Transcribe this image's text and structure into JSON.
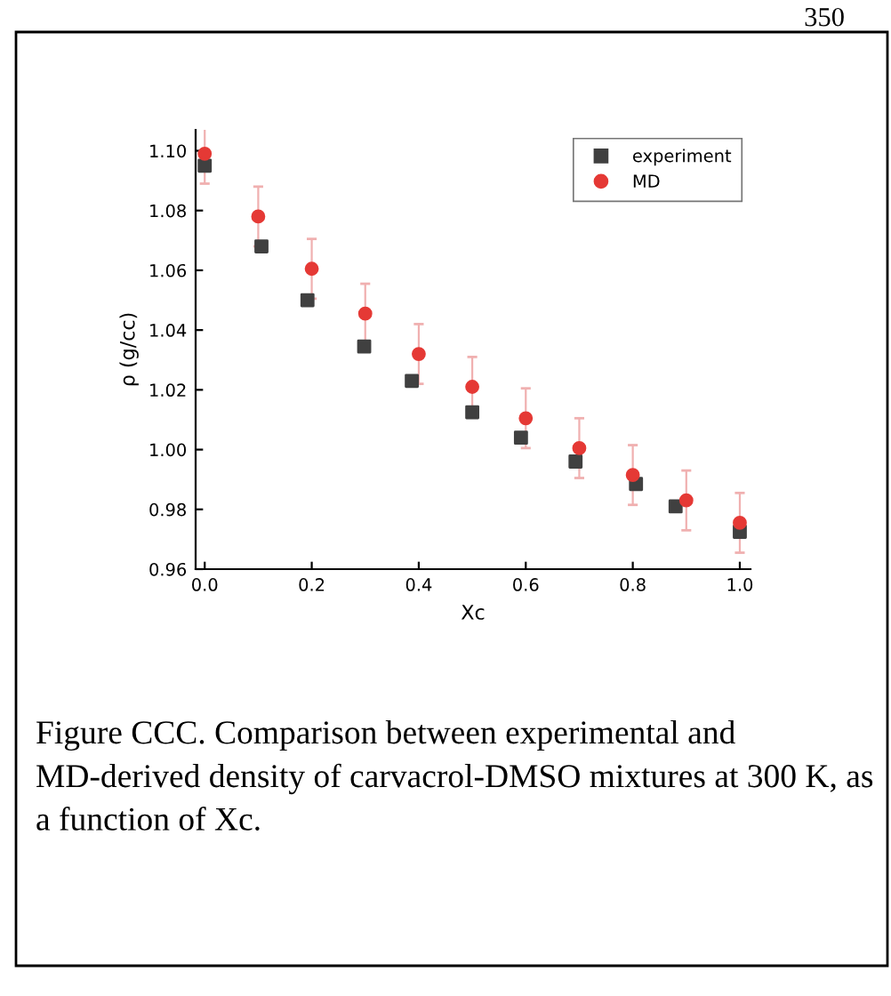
{
  "chart_data": {
    "type": "scatter",
    "xlabel": "Xc",
    "ylabel": "ρ (g/cc)",
    "xlim": [
      -0.017,
      1.02
    ],
    "ylim": [
      0.96,
      1.107
    ],
    "xticks": [
      {
        "value": 0,
        "label": "0.0"
      },
      0.2,
      0.4,
      0.6,
      0.8,
      {
        "value": 1,
        "label": "1.0"
      }
    ],
    "yticks": [
      0.96,
      0.98,
      {
        "value": 1,
        "label": "1.00"
      },
      1.02,
      1.04,
      1.06,
      1.08,
      {
        "value": 1.1,
        "label": "1.10"
      }
    ],
    "grid": false,
    "legend": "top right",
    "series": [
      {
        "name": "experiment",
        "color": "#404040",
        "marker": "square",
        "x": [
          0,
          0.106,
          0.192,
          0.298,
          0.387,
          0.5,
          0.591,
          0.693,
          0.806,
          0.88,
          1.0
        ],
        "values": [
          1.095,
          1.068,
          1.05,
          1.0345,
          1.023,
          1.0125,
          1.004,
          0.996,
          0.9885,
          0.981,
          0.9725
        ]
      },
      {
        "name": "MD",
        "color": "#e53935",
        "marker": "circle",
        "x": [
          0,
          0.1,
          0.2,
          0.3,
          0.4,
          0.5,
          0.6,
          0.7,
          0.8,
          0.9,
          1.0
        ],
        "values": [
          1.099,
          1.078,
          1.0605,
          1.0455,
          1.032,
          1.021,
          1.0105,
          1.0005,
          0.9915,
          0.983,
          0.9755
        ],
        "errors": [
          0.01,
          0.01,
          0.01,
          0.01,
          0.01,
          0.01,
          0.01,
          0.01,
          0.01,
          0.01,
          0.01
        ]
      }
    ],
    "annotations": [
      "350",
      "Figure CCC. Comparison between experimental and MD-derived density of carvacrol-DMSO mixtures at 300 K, as a function of Xc."
    ]
  }
}
